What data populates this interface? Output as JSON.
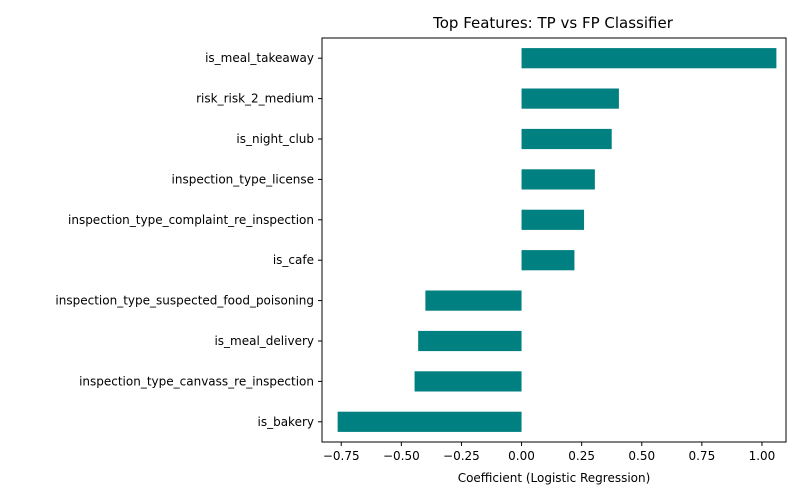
{
  "chart_data": {
    "type": "bar",
    "orientation": "horizontal",
    "title": "Top Features: TP vs FP Classifier",
    "xlabel": "Coefficient (Logistic Regression)",
    "ylabel": "",
    "bar_color": "#008080",
    "grid": false,
    "xlim": [
      -0.83,
      1.1
    ],
    "x_ticks": [
      -0.75,
      -0.5,
      -0.25,
      0.0,
      0.25,
      0.5,
      0.75,
      1.0
    ],
    "x_tick_labels": [
      "−0.75",
      "−0.50",
      "−0.25",
      "0.00",
      "0.25",
      "0.50",
      "0.75",
      "1.00"
    ],
    "categories": [
      "is_meal_takeaway",
      "risk_risk_2_medium",
      "is_night_club",
      "inspection_type_license",
      "inspection_type_complaint_re_inspection",
      "is_cafe",
      "inspection_type_suspected_food_poisoning",
      "is_meal_delivery",
      "inspection_type_canvass_re_inspection",
      "is_bakery"
    ],
    "values": [
      1.06,
      0.405,
      0.375,
      0.305,
      0.26,
      0.22,
      -0.4,
      -0.43,
      -0.445,
      -0.765
    ]
  }
}
